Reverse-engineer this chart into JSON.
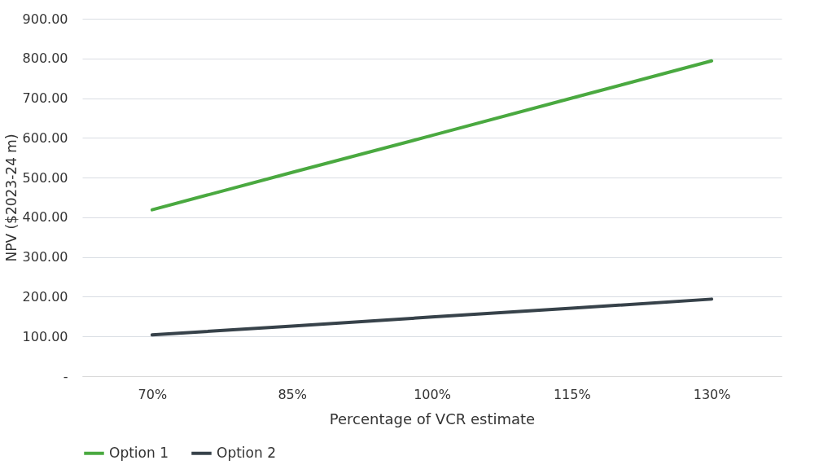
{
  "chart_data": {
    "type": "line",
    "xlabel": "Percentage of VCR estimate",
    "ylabel": "NPV ($2023-24 m)",
    "categories": [
      "70%",
      "85%",
      "100%",
      "115%",
      "130%"
    ],
    "series": [
      {
        "name": "Option 1",
        "color": "#4aa940",
        "values": [
          419,
          513,
          606,
          700,
          794
        ]
      },
      {
        "name": "Option 2",
        "color": "#37424a",
        "values": [
          104,
          126,
          149,
          171,
          194
        ]
      }
    ],
    "ylim": [
      0,
      900
    ],
    "yticks": [
      {
        "value": 0,
        "label": "-"
      },
      {
        "value": 100,
        "label": "100.00"
      },
      {
        "value": 200,
        "label": "200.00"
      },
      {
        "value": 300,
        "label": "300.00"
      },
      {
        "value": 400,
        "label": "400.00"
      },
      {
        "value": 500,
        "label": "500.00"
      },
      {
        "value": 600,
        "label": "600.00"
      },
      {
        "value": 700,
        "label": "700.00"
      },
      {
        "value": 800,
        "label": "800.00"
      },
      {
        "value": 900,
        "label": "900.00"
      }
    ],
    "grid": "y",
    "legend": "bottom",
    "marker": "none",
    "line_style": "solid"
  }
}
